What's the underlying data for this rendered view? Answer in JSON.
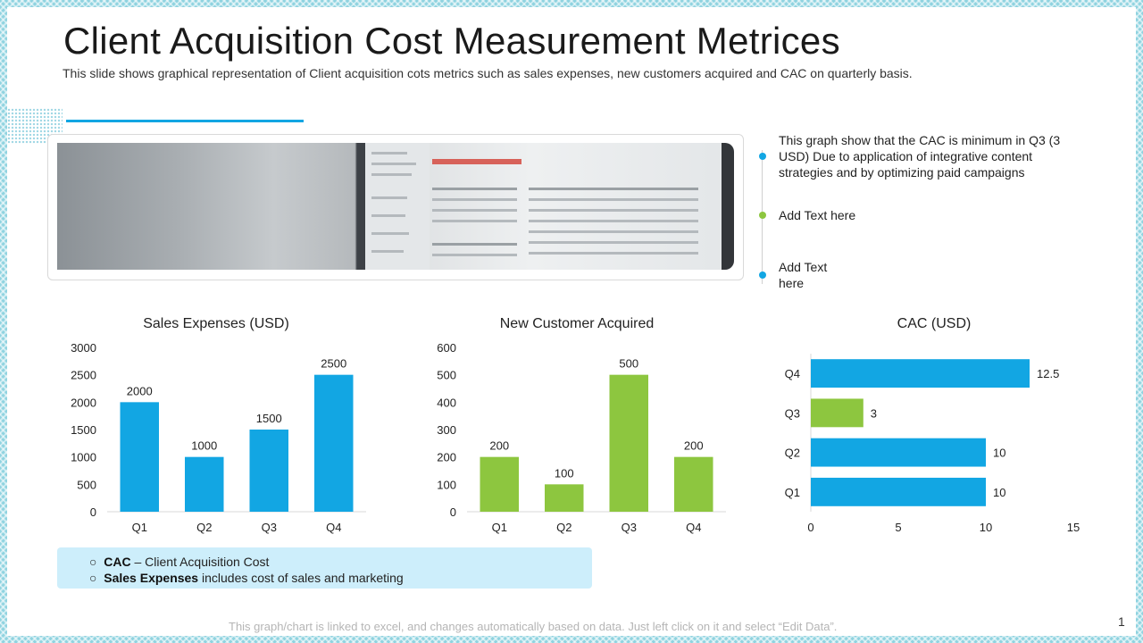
{
  "header": {
    "title": "Client Acquisition Cost Measurement Metrices",
    "subtitle": "This slide shows graphical representation of Client acquisition cots metrics such as sales expenses, new customers acquired and CAC on quarterly basis."
  },
  "timeline": [
    {
      "text": "This graph show that the CAC is minimum in Q3 (3 USD) Due to application of integrative content strategies and by optimizing paid campaigns",
      "color": "#12a6e3"
    },
    {
      "text": "Add Text here",
      "color": "#8dc63f"
    },
    {
      "text": "Add Text here",
      "color": "#12a6e3"
    }
  ],
  "chart_data": [
    {
      "type": "bar",
      "title": "Sales Expenses (USD)",
      "categories": [
        "Q1",
        "Q2",
        "Q3",
        "Q4"
      ],
      "values": [
        2000,
        1000,
        1500,
        2500
      ],
      "ylim": [
        0,
        3000
      ],
      "yticks": [
        0,
        500,
        1000,
        1500,
        2000,
        2500,
        3000
      ],
      "color": "#12a6e3"
    },
    {
      "type": "bar",
      "title": "New Customer Acquired",
      "categories": [
        "Q1",
        "Q2",
        "Q3",
        "Q4"
      ],
      "values": [
        200,
        100,
        500,
        200
      ],
      "ylim": [
        0,
        600
      ],
      "yticks": [
        0,
        100,
        200,
        300,
        400,
        500,
        600
      ],
      "color": "#8dc63f"
    },
    {
      "type": "barh",
      "title": "CAC (USD)",
      "categories": [
        "Q1",
        "Q2",
        "Q3",
        "Q4"
      ],
      "values": [
        10,
        10,
        3,
        12.5
      ],
      "value_labels": [
        "10",
        "10",
        "3",
        "12.5"
      ],
      "xlim": [
        0,
        15
      ],
      "xticks": [
        0,
        5,
        10,
        15
      ],
      "colors": [
        "#12a6e3",
        "#12a6e3",
        "#8dc63f",
        "#12a6e3"
      ]
    }
  ],
  "legend": {
    "items": [
      {
        "term": "CAC",
        "desc": " – Client Acquisition Cost"
      },
      {
        "term": "Sales Expenses",
        "desc": " includes cost of sales and marketing"
      }
    ],
    "bullet": "○"
  },
  "footer": "This graph/chart is linked to excel, and changes automatically based on data. Just left click on it and select “Edit Data”.",
  "page_number": "1"
}
